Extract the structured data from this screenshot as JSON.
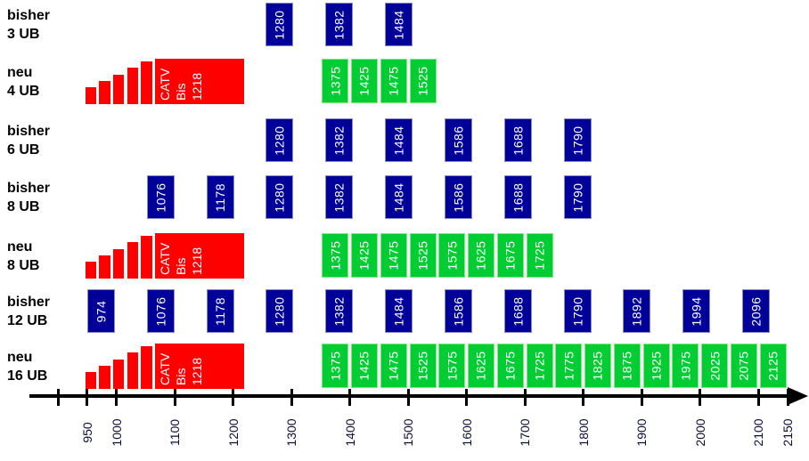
{
  "chart_data": {
    "type": "bar",
    "variant": "frequency-band-plan",
    "title": "",
    "xlabel": "",
    "ylabel": "",
    "axis": {
      "min": 900,
      "max": 2150,
      "grid": false,
      "arrow_end": true,
      "ticks": [
        {
          "value": 900,
          "label": ""
        },
        {
          "value": 950,
          "label": "950"
        },
        {
          "value": 1000,
          "label": "1000"
        },
        {
          "value": 1100,
          "label": "1100"
        },
        {
          "value": 1200,
          "label": "1200"
        },
        {
          "value": 1300,
          "label": "1300"
        },
        {
          "value": 1400,
          "label": "1400"
        },
        {
          "value": 1500,
          "label": "1500"
        },
        {
          "value": 1600,
          "label": "1600"
        },
        {
          "value": 1700,
          "label": "1700"
        },
        {
          "value": 1800,
          "label": "1800"
        },
        {
          "value": 1900,
          "label": "1900"
        },
        {
          "value": 2000,
          "label": "2000"
        },
        {
          "value": 2100,
          "label": "2100"
        },
        {
          "value": 2150,
          "label": "2150"
        }
      ]
    },
    "catv": {
      "lines": [
        "CATV",
        "Bis",
        "1218"
      ],
      "band_start": 1066,
      "band_end": 1219,
      "ramp_start": 950,
      "ramp_bar_count": 5
    },
    "rows": [
      {
        "id": "bisher-3ub",
        "label": [
          "bisher",
          "3 UB"
        ],
        "style": "blue",
        "has_catv": false,
        "bands": [
          1280,
          1382,
          1484
        ]
      },
      {
        "id": "neu-4ub",
        "label": [
          "neu",
          "4 UB"
        ],
        "style": "green",
        "has_catv": true,
        "bands": [
          1375,
          1425,
          1475,
          1525
        ]
      },
      {
        "id": "bisher-6ub",
        "label": [
          "bisher",
          "6 UB"
        ],
        "style": "blue",
        "has_catv": false,
        "bands": [
          1280,
          1382,
          1484,
          1586,
          1688,
          1790
        ]
      },
      {
        "id": "bisher-8ub",
        "label": [
          "bisher",
          "8 UB"
        ],
        "style": "blue",
        "has_catv": false,
        "bands": [
          1076,
          1178,
          1280,
          1382,
          1484,
          1586,
          1688,
          1790
        ]
      },
      {
        "id": "neu-8ub",
        "label": [
          "neu",
          "8 UB"
        ],
        "style": "green",
        "has_catv": true,
        "bands": [
          1375,
          1425,
          1475,
          1525,
          1575,
          1625,
          1675,
          1725
        ]
      },
      {
        "id": "bisher-12ub",
        "label": [
          "bisher",
          "12 UB"
        ],
        "style": "blue",
        "has_catv": false,
        "bands": [
          974,
          1076,
          1178,
          1280,
          1382,
          1484,
          1586,
          1688,
          1790,
          1892,
          1994,
          2096
        ]
      },
      {
        "id": "neu-16ub",
        "label": [
          "neu",
          "16 UB"
        ],
        "style": "green",
        "has_catv": true,
        "bands": [
          1375,
          1425,
          1475,
          1525,
          1575,
          1625,
          1675,
          1725,
          1775,
          1825,
          1875,
          1925,
          1975,
          2025,
          2075,
          2125
        ]
      }
    ],
    "colors": {
      "bisher_box": "#000099",
      "neu_box": "#00cc33",
      "catv_block": "#ff0000",
      "box_text": "#ffffff",
      "axis": "#000000",
      "label_text": "#000000"
    }
  }
}
